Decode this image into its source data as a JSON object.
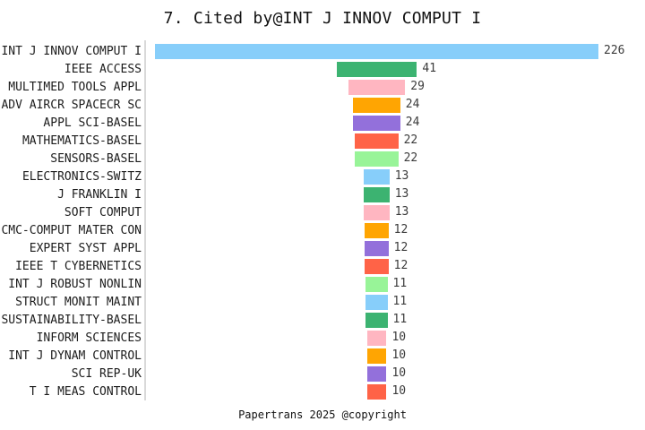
{
  "title": "7. Cited by@INT J INNOV COMPUT I",
  "footer": "Papertrans 2025 @copyright",
  "chart_data": {
    "type": "bar",
    "subtype": "horizontal-centered-funnel",
    "title": "7. Cited by@INT J INNOV COMPUT I",
    "xlabel": "",
    "ylabel": "",
    "grid": false,
    "legend": false,
    "value_labels_shown": true,
    "axis_line_color": "#d9d9d9",
    "value_label_color": "#3b3b3b",
    "category_label_color": "#1c1c1c",
    "categories": [
      "INT J INNOV COMPUT I",
      "IEEE ACCESS",
      "MULTIMED TOOLS APPL",
      "ADV AIRCR SPACECR SC",
      "APPL SCI-BASEL",
      "MATHEMATICS-BASEL",
      "SENSORS-BASEL",
      "ELECTRONICS-SWITZ",
      "J FRANKLIN I",
      "SOFT COMPUT",
      "CMC-COMPUT MATER CON",
      "EXPERT SYST APPL",
      "IEEE T CYBERNETICS",
      "INT J ROBUST NONLIN",
      "STRUCT MONIT MAINT",
      "SUSTAINABILITY-BASEL",
      "INFORM SCIENCES",
      "INT J DYNAM CONTROL",
      "SCI REP-UK",
      "T I MEAS CONTROL"
    ],
    "values": [
      226,
      41,
      29,
      24,
      24,
      22,
      22,
      13,
      13,
      13,
      12,
      12,
      12,
      11,
      11,
      11,
      10,
      10,
      10,
      10
    ],
    "bar_colors": [
      "#87CEFA",
      "#3CB371",
      "#FFB6C1",
      "#FFA502",
      "#9370DB",
      "#FF6347",
      "#98F498",
      "#87CEFA",
      "#3CB371",
      "#FFB6C1",
      "#FFA502",
      "#9370DB",
      "#FF6347",
      "#98F498",
      "#87CEFA",
      "#3CB371",
      "#FFB6C1",
      "#FFA502",
      "#9370DB",
      "#FF6347"
    ],
    "color_cycle": [
      "#87CEFA",
      "#3CB371",
      "#FFB6C1",
      "#FFA502",
      "#9370DB",
      "#FF6347",
      "#98F498"
    ]
  }
}
